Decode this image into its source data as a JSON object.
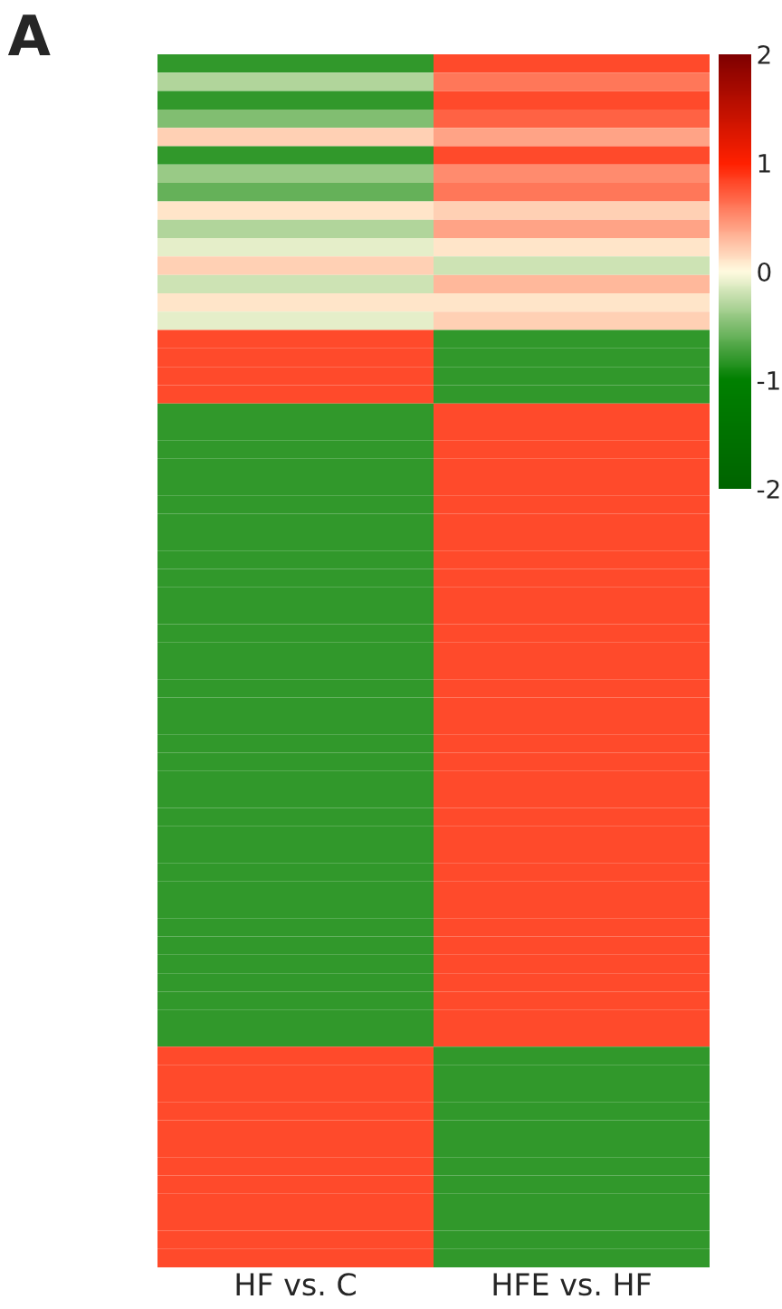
{
  "chart_data": {
    "type": "heatmap",
    "annotations": [
      "A"
    ],
    "categories": [
      "HF vs. C",
      "HFE vs. HF"
    ],
    "y_categories": [
      null,
      null,
      null,
      null,
      null,
      null,
      null,
      null,
      null,
      null,
      null,
      null,
      null,
      null,
      null,
      null,
      null,
      null,
      null,
      null,
      null,
      null,
      null,
      null,
      null,
      null,
      null,
      null,
      null,
      null,
      null,
      null,
      null,
      null,
      null,
      null,
      null,
      null,
      null,
      null,
      null,
      null,
      null,
      null,
      null,
      null,
      null,
      null,
      null,
      null,
      null,
      null,
      null,
      null,
      null,
      null,
      null,
      null,
      null,
      null,
      null,
      null,
      null,
      null,
      null,
      null
    ],
    "cells": [
      [
        -0.8,
        0.8
      ],
      [
        -0.3,
        0.6
      ],
      [
        -0.8,
        0.8
      ],
      [
        -0.5,
        0.7
      ],
      [
        0.2,
        0.4
      ],
      [
        -0.8,
        0.8
      ],
      [
        -0.4,
        0.5
      ],
      [
        -0.6,
        0.6
      ],
      [
        0.1,
        0.2
      ],
      [
        -0.3,
        0.4
      ],
      [
        -0.1,
        0.1
      ],
      [
        0.2,
        -0.2
      ],
      [
        -0.2,
        0.3
      ],
      [
        0.1,
        0.1
      ],
      [
        -0.1,
        0.2
      ],
      [
        0.8,
        -0.8
      ],
      [
        0.8,
        -0.8
      ],
      [
        0.8,
        -0.8
      ],
      [
        0.8,
        -0.8
      ],
      [
        -0.8,
        0.8
      ],
      [
        -0.8,
        0.8
      ],
      [
        -0.8,
        0.8
      ],
      [
        -0.8,
        0.8
      ],
      [
        -0.8,
        0.8
      ],
      [
        -0.8,
        0.8
      ],
      [
        -0.8,
        0.8
      ],
      [
        -0.8,
        0.8
      ],
      [
        -0.8,
        0.8
      ],
      [
        -0.8,
        0.8
      ],
      [
        -0.8,
        0.8
      ],
      [
        -0.8,
        0.8
      ],
      [
        -0.8,
        0.8
      ],
      [
        -0.8,
        0.8
      ],
      [
        -0.8,
        0.8
      ],
      [
        -0.8,
        0.8
      ],
      [
        -0.8,
        0.8
      ],
      [
        -0.8,
        0.8
      ],
      [
        -0.8,
        0.8
      ],
      [
        -0.8,
        0.8
      ],
      [
        -0.8,
        0.8
      ],
      [
        -0.8,
        0.8
      ],
      [
        -0.8,
        0.8
      ],
      [
        -0.8,
        0.8
      ],
      [
        -0.8,
        0.8
      ],
      [
        -0.8,
        0.8
      ],
      [
        -0.8,
        0.8
      ],
      [
        -0.8,
        0.8
      ],
      [
        -0.8,
        0.8
      ],
      [
        -0.8,
        0.8
      ],
      [
        -0.8,
        0.8
      ],
      [
        -0.8,
        0.8
      ],
      [
        -0.8,
        0.8
      ],
      [
        -0.8,
        0.8
      ],
      [
        -0.8,
        0.8
      ],
      [
        0.8,
        -0.8
      ],
      [
        0.8,
        -0.8
      ],
      [
        0.8,
        -0.8
      ],
      [
        0.8,
        -0.8
      ],
      [
        0.8,
        -0.8
      ],
      [
        0.8,
        -0.8
      ],
      [
        0.8,
        -0.8
      ],
      [
        0.8,
        -0.8
      ],
      [
        0.8,
        -0.8
      ],
      [
        0.8,
        -0.8
      ],
      [
        0.8,
        -0.8
      ],
      [
        0.8,
        -0.8
      ]
    ],
    "clim": [
      -2,
      2
    ],
    "cticks": [
      -2,
      -1,
      0,
      1,
      2
    ],
    "colors": [
      "#006400",
      "#008000",
      "#fffbe0",
      "#ff2000",
      "#800000"
    ]
  }
}
